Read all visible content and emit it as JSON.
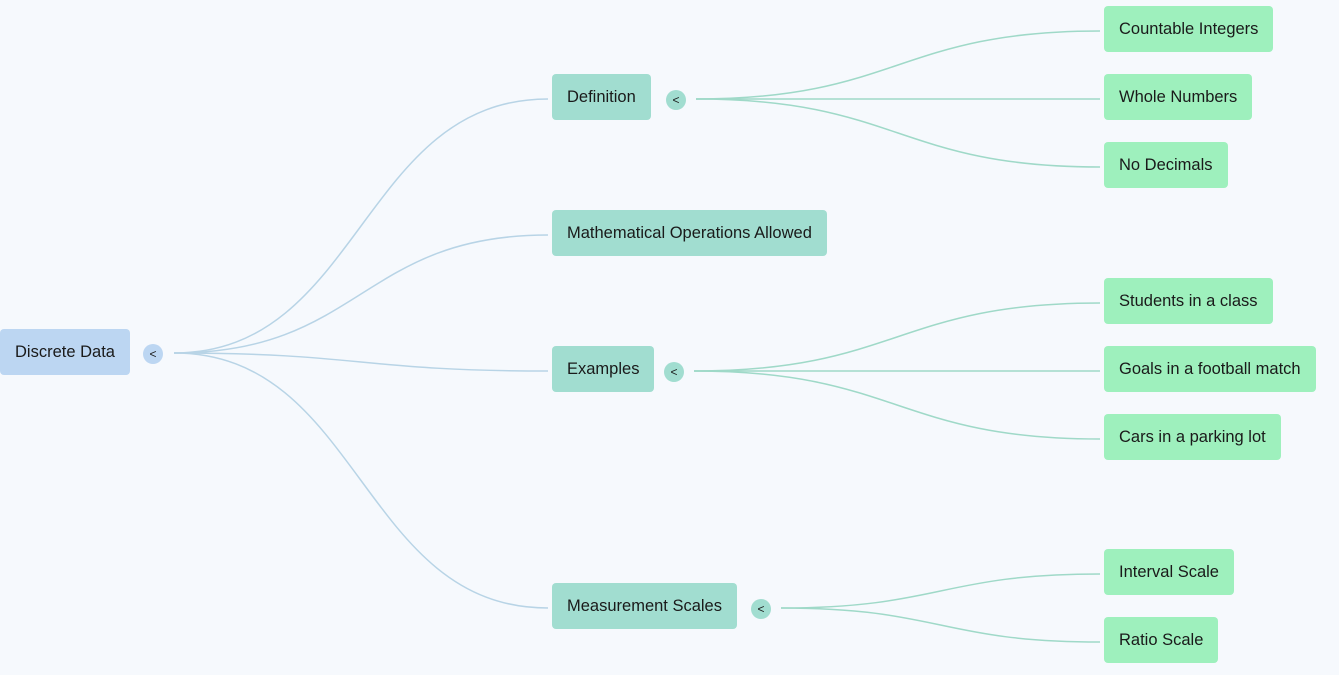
{
  "colors": {
    "background": "#f6f9fd",
    "root_fill": "#bcd6f2",
    "branch_fill": "#a1ddd0",
    "leaf_fill": "#9ef0bd",
    "root_link": "#b8d4e6",
    "branch_link": "#9fd9c8"
  },
  "toggle_symbol": "<",
  "root": {
    "label": "Discrete Data"
  },
  "branches": [
    {
      "label": "Definition",
      "children": [
        "Countable Integers",
        "Whole Numbers",
        "No Decimals"
      ]
    },
    {
      "label": "Mathematical Operations Allowed",
      "children": []
    },
    {
      "label": "Examples",
      "children": [
        "Students in a class",
        "Goals in a football match",
        "Cars in a parking lot"
      ]
    },
    {
      "label": "Measurement Scales",
      "children": [
        "Interval Scale",
        "Ratio Scale"
      ]
    }
  ]
}
